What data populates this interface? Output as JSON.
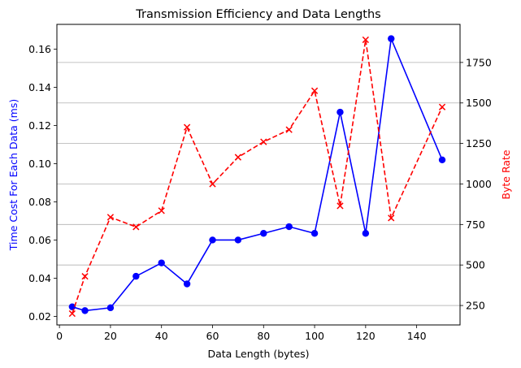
{
  "chart_data": {
    "type": "line",
    "title": "Transmission Efficiency and Data Lengths",
    "xlabel": "Data Length (bytes)",
    "ylabel_left": "Time Cost For Each Data (ms)",
    "ylabel_right": "Byte Rate",
    "xlim": [
      -1,
      157
    ],
    "ylim_left": [
      0.0155,
      0.173
    ],
    "ylim_right": [
      130,
      1985
    ],
    "x_ticks": [
      "0",
      "20",
      "40",
      "60",
      "80",
      "100",
      "120",
      "140"
    ],
    "x_tick_values": [
      0,
      20,
      40,
      60,
      80,
      100,
      120,
      140
    ],
    "y_left_ticks": [
      "0.02",
      "0.04",
      "0.06",
      "0.08",
      "0.10",
      "0.12",
      "0.14",
      "0.16"
    ],
    "y_left_tick_values": [
      0.02,
      0.04,
      0.06,
      0.08,
      0.1,
      0.12,
      0.14,
      0.16
    ],
    "y_right_ticks": [
      "250",
      "500",
      "750",
      "1000",
      "1250",
      "1500",
      "1750"
    ],
    "y_right_tick_values": [
      250,
      500,
      750,
      1000,
      1250,
      1500,
      1750
    ],
    "grid": "horizontal lines at right-axis ticks",
    "x": [
      5,
      10,
      20,
      30,
      40,
      50,
      60,
      70,
      80,
      90,
      100,
      110,
      120,
      130,
      150
    ],
    "series": [
      {
        "axis": "left",
        "color": "#0000ff",
        "linestyle": "solid",
        "marker": "circle",
        "values": [
          0.025,
          0.023,
          0.0245,
          0.041,
          0.048,
          0.037,
          0.06,
          0.06,
          0.0635,
          0.067,
          0.0635,
          0.127,
          0.0635,
          0.1655,
          0.102
        ]
      },
      {
        "axis": "right",
        "color": "#ff0000",
        "linestyle": "dashed",
        "marker": "x",
        "values": [
          200,
          430,
          795,
          735,
          835,
          1350,
          1000,
          1165,
          1260,
          1335,
          1575,
          865,
          1890,
          790,
          1475
        ]
      }
    ]
  }
}
